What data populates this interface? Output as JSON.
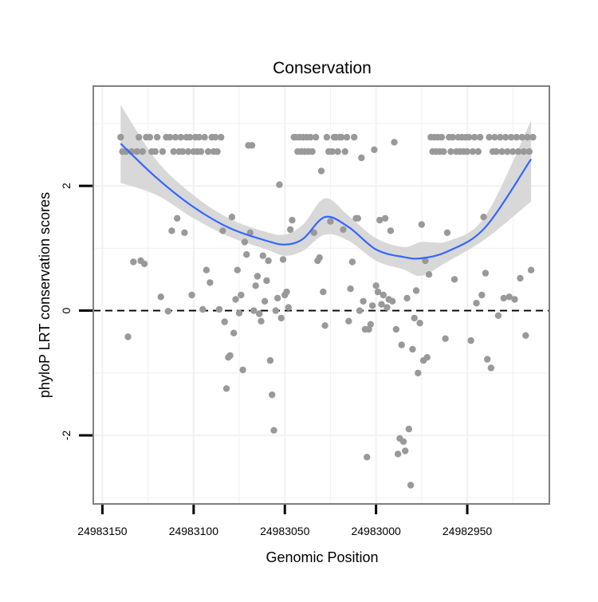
{
  "chart_data": {
    "type": "scatter",
    "title": "Conservation",
    "xlabel": "Genomic Position",
    "ylabel": "phyloP LRT conservation scores",
    "x_reversed": true,
    "xlim": [
      24983155,
      24982905
    ],
    "ylim": [
      -3.1,
      3.6
    ],
    "x_ticks": [
      24983150,
      24983100,
      24983050,
      24983000,
      24982950
    ],
    "y_ticks": [
      -2,
      0,
      2
    ],
    "grid": true,
    "reference_line": {
      "y": 0,
      "style": "dashed"
    },
    "colors": {
      "points": "#999999",
      "smooth": "#3366ff",
      "ribbon": "#d6d6d6",
      "panel_border": "#7f7f7f",
      "grid": "#f2f2f2"
    },
    "points": [
      [
        24983140,
        2.78
      ],
      [
        24983139,
        2.55
      ],
      [
        24983137,
        2.55
      ],
      [
        24983136,
        -0.42
      ],
      [
        24983134,
        2.55
      ],
      [
        24983133,
        0.78
      ],
      [
        24983131,
        2.55
      ],
      [
        24983130,
        2.78
      ],
      [
        24983129,
        0.8
      ],
      [
        24983128,
        2.55
      ],
      [
        24983127,
        0.75
      ],
      [
        24983126,
        2.78
      ],
      [
        24983124,
        2.78
      ],
      [
        24983123,
        2.55
      ],
      [
        24983121,
        2.55
      ],
      [
        24983120,
        2.78
      ],
      [
        24983118,
        0.22
      ],
      [
        24983117,
        2.55
      ],
      [
        24983115,
        2.78
      ],
      [
        24983114,
        -0.01
      ],
      [
        24983113,
        2.78
      ],
      [
        24983112,
        1.28
      ],
      [
        24983111,
        2.55
      ],
      [
        24983110,
        2.78
      ],
      [
        24983109,
        1.48
      ],
      [
        24983108,
        2.55
      ],
      [
        24983107,
        2.78
      ],
      [
        24983106,
        2.55
      ],
      [
        24983105,
        1.25
      ],
      [
        24983104,
        2.78
      ],
      [
        24983103,
        2.55
      ],
      [
        24983102,
        2.78
      ],
      [
        24983101,
        0.25
      ],
      [
        24983100,
        2.55
      ],
      [
        24983099,
        2.78
      ],
      [
        24983098,
        2.55
      ],
      [
        24983097,
        2.78
      ],
      [
        24983096,
        2.55
      ],
      [
        24983095,
        0.02
      ],
      [
        24983094,
        2.78
      ],
      [
        24983093,
        0.65
      ],
      [
        24983092,
        2.55
      ],
      [
        24983091,
        0.45
      ],
      [
        24983090,
        2.78
      ],
      [
        24983089,
        2.55
      ],
      [
        24983088,
        2.78
      ],
      [
        24983087,
        2.55
      ],
      [
        24983086,
        0.02
      ],
      [
        24983085,
        2.78
      ],
      [
        24983084,
        1.28
      ],
      [
        24983083,
        -0.18
      ],
      [
        24983082,
        -1.25
      ],
      [
        24983081,
        -0.75
      ],
      [
        24983080,
        -0.72
      ],
      [
        24983079,
        1.5
      ],
      [
        24983078,
        -0.36
      ],
      [
        24983077,
        0.18
      ],
      [
        24983076,
        0.65
      ],
      [
        24983075,
        -0.04
      ],
      [
        24983074,
        0.25
      ],
      [
        24983073,
        -0.95
      ],
      [
        24983072,
        1.1
      ],
      [
        24983071,
        0.9
      ],
      [
        24983070,
        2.65
      ],
      [
        24983069,
        1.25
      ],
      [
        24983068,
        2.65
      ],
      [
        24983067,
        0.0
      ],
      [
        24983066,
        0.4
      ],
      [
        24983065,
        0.55
      ],
      [
        24983064,
        -0.05
      ],
      [
        24983063,
        -0.17
      ],
      [
        24983062,
        0.88
      ],
      [
        24983061,
        0.15
      ],
      [
        24983060,
        0.48
      ],
      [
        24983059,
        0.8
      ],
      [
        24983058,
        -0.8
      ],
      [
        24983057,
        -1.35
      ],
      [
        24983056,
        -1.92
      ],
      [
        24983055,
        0.0
      ],
      [
        24983054,
        0.2
      ],
      [
        24983053,
        2.02
      ],
      [
        24983052,
        -0.12
      ],
      [
        24983051,
        0.82
      ],
      [
        24983050,
        0.25
      ],
      [
        24983049,
        0.3
      ],
      [
        24983048,
        0.05
      ],
      [
        24983047,
        1.3
      ],
      [
        24983046,
        1.45
      ],
      [
        24983045,
        2.78
      ],
      [
        24983044,
        2.78
      ],
      [
        24983043,
        2.55
      ],
      [
        24983042,
        2.78
      ],
      [
        24983041,
        2.55
      ],
      [
        24983040,
        2.78
      ],
      [
        24983039,
        2.55
      ],
      [
        24983038,
        2.78
      ],
      [
        24983037,
        2.55
      ],
      [
        24983036,
        2.78
      ],
      [
        24983035,
        2.55
      ],
      [
        24983034,
        1.25
      ],
      [
        24983033,
        2.78
      ],
      [
        24983032,
        0.8
      ],
      [
        24983031,
        0.85
      ],
      [
        24983030,
        2.24
      ],
      [
        24983029,
        0.3
      ],
      [
        24983028,
        -0.24
      ],
      [
        24983027,
        2.78
      ],
      [
        24983026,
        2.55
      ],
      [
        24983025,
        1.43
      ],
      [
        24983024,
        2.55
      ],
      [
        24983023,
        2.78
      ],
      [
        24983022,
        2.78
      ],
      [
        24983021,
        2.55
      ],
      [
        24983020,
        2.78
      ],
      [
        24983019,
        2.78
      ],
      [
        24983018,
        1.3
      ],
      [
        24983017,
        2.55
      ],
      [
        24983016,
        2.78
      ],
      [
        24983015,
        -0.17
      ],
      [
        24983014,
        0.35
      ],
      [
        24983013,
        0.78
      ],
      [
        24983012,
        2.78
      ],
      [
        24983011,
        1.48
      ],
      [
        24983010,
        1.48
      ],
      [
        24983009,
        0.0
      ],
      [
        24983008,
        2.45
      ],
      [
        24983007,
        0.15
      ],
      [
        24983006,
        -0.3
      ],
      [
        24983005,
        -2.35
      ],
      [
        24983004,
        -0.3
      ],
      [
        24983003,
        -0.22
      ],
      [
        24983002,
        0.08
      ],
      [
        24983001,
        2.58
      ],
      [
        24983000,
        0.4
      ],
      [
        24982999,
        0.3
      ],
      [
        24982998,
        1.45
      ],
      [
        24982997,
        0.1
      ],
      [
        24982996,
        0.25
      ],
      [
        24982995,
        1.48
      ],
      [
        24982994,
        0.05
      ],
      [
        24982993,
        0.18
      ],
      [
        24982992,
        1.28
      ],
      [
        24982991,
        0.15
      ],
      [
        24982990,
        2.7
      ],
      [
        24982989,
        -0.3
      ],
      [
        24982988,
        -2.3
      ],
      [
        24982987,
        -2.05
      ],
      [
        24982986,
        -0.55
      ],
      [
        24982985,
        -2.1
      ],
      [
        24982984,
        -2.25
      ],
      [
        24982983,
        0.2
      ],
      [
        24982982,
        -1.9
      ],
      [
        24982981,
        -2.8
      ],
      [
        24982980,
        -0.62
      ],
      [
        24982979,
        -0.12
      ],
      [
        24982978,
        0.32
      ],
      [
        24982977,
        -1.0
      ],
      [
        24982976,
        -0.2
      ],
      [
        24982975,
        1.38
      ],
      [
        24982974,
        -0.8
      ],
      [
        24982973,
        0.8
      ],
      [
        24982972,
        -0.75
      ],
      [
        24982971,
        0.58
      ],
      [
        24982970,
        2.78
      ],
      [
        24982969,
        2.55
      ],
      [
        24982968,
        2.78
      ],
      [
        24982967,
        2.55
      ],
      [
        24982966,
        2.78
      ],
      [
        24982965,
        2.55
      ],
      [
        24982964,
        2.78
      ],
      [
        24982963,
        2.55
      ],
      [
        24982962,
        -0.45
      ],
      [
        24982961,
        1.25
      ],
      [
        24982960,
        2.78
      ],
      [
        24982959,
        2.55
      ],
      [
        24982958,
        2.78
      ],
      [
        24982957,
        0.5
      ],
      [
        24982956,
        2.55
      ],
      [
        24982955,
        2.78
      ],
      [
        24982954,
        2.55
      ],
      [
        24982953,
        2.78
      ],
      [
        24982952,
        2.55
      ],
      [
        24982951,
        2.78
      ],
      [
        24982950,
        2.55
      ],
      [
        24982949,
        2.78
      ],
      [
        24982948,
        -0.48
      ],
      [
        24982947,
        2.55
      ],
      [
        24982946,
        2.78
      ],
      [
        24982945,
        0.12
      ],
      [
        24982944,
        2.55
      ],
      [
        24982943,
        2.78
      ],
      [
        24982942,
        0.25
      ],
      [
        24982941,
        1.5
      ],
      [
        24982940,
        0.6
      ],
      [
        24982939,
        -0.78
      ],
      [
        24982938,
        2.78
      ],
      [
        24982937,
        -0.92
      ],
      [
        24982936,
        2.55
      ],
      [
        24982935,
        2.78
      ],
      [
        24982934,
        2.55
      ],
      [
        24982933,
        -0.08
      ],
      [
        24982932,
        2.78
      ],
      [
        24982931,
        2.55
      ],
      [
        24982930,
        0.2
      ],
      [
        24982929,
        2.78
      ],
      [
        24982928,
        2.55
      ],
      [
        24982927,
        0.22
      ],
      [
        24982926,
        2.78
      ],
      [
        24982925,
        2.55
      ],
      [
        24982924,
        0.18
      ],
      [
        24982923,
        2.78
      ],
      [
        24982922,
        2.55
      ],
      [
        24982921,
        0.52
      ],
      [
        24982920,
        2.78
      ],
      [
        24982919,
        2.55
      ],
      [
        24982918,
        -0.4
      ],
      [
        24982917,
        2.78
      ],
      [
        24982916,
        2.55
      ],
      [
        24982915,
        0.65
      ],
      [
        24982914,
        2.78
      ]
    ],
    "smooth": {
      "x": [
        24983140,
        24983120,
        24983100,
        24983080,
        24983060,
        24983050,
        24983040,
        24983028,
        24983015,
        24983000,
        24982985,
        24982975,
        24982960,
        24982940,
        24982915
      ],
      "y": [
        2.68,
        2.12,
        1.66,
        1.32,
        1.12,
        1.06,
        1.15,
        1.5,
        1.34,
        0.98,
        0.86,
        0.84,
        0.96,
        1.34,
        2.43
      ],
      "lower": [
        2.05,
        1.85,
        1.48,
        1.18,
        0.98,
        0.88,
        0.96,
        1.22,
        1.12,
        0.8,
        0.66,
        0.56,
        0.8,
        1.15,
        1.75
      ],
      "upper": [
        3.3,
        2.4,
        1.85,
        1.47,
        1.26,
        1.22,
        1.38,
        1.8,
        1.52,
        1.16,
        1.02,
        1.1,
        1.12,
        1.52,
        3.05
      ]
    }
  }
}
